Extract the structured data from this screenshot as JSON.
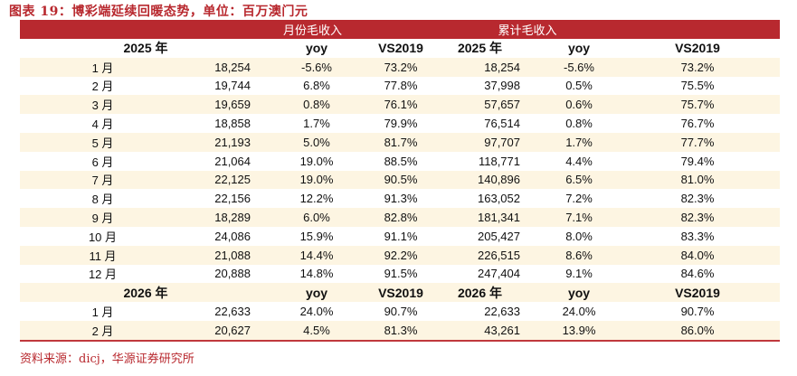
{
  "title": "图表 19：博彩端延续回暖态势，单位：百万澳门元",
  "header": {
    "monthly": "月份毛收入",
    "cumulative": "累计毛收入"
  },
  "sections": [
    {
      "subheader": [
        "2025 年",
        "yoy",
        "VS2019",
        "2025 年",
        "yoy",
        "VS2019"
      ],
      "rows": [
        [
          "1 月",
          "18,254",
          "-5.6%",
          "73.2%",
          "18,254",
          "-5.6%",
          "73.2%"
        ],
        [
          "2 月",
          "19,744",
          "6.8%",
          "77.8%",
          "37,998",
          "0.5%",
          "75.5%"
        ],
        [
          "3 月",
          "19,659",
          "0.8%",
          "76.1%",
          "57,657",
          "0.6%",
          "75.7%"
        ],
        [
          "4 月",
          "18,858",
          "1.7%",
          "79.9%",
          "76,514",
          "0.8%",
          "76.7%"
        ],
        [
          "5 月",
          "21,193",
          "5.0%",
          "81.7%",
          "97,707",
          "1.7%",
          "77.7%"
        ],
        [
          "6 月",
          "21,064",
          "19.0%",
          "88.5%",
          "118,771",
          "4.4%",
          "79.4%"
        ],
        [
          "7 月",
          "22,125",
          "19.0%",
          "90.5%",
          "140,896",
          "6.5%",
          "81.0%"
        ],
        [
          "8 月",
          "22,156",
          "12.2%",
          "91.3%",
          "163,052",
          "7.2%",
          "82.3%"
        ],
        [
          "9 月",
          "18,289",
          "6.0%",
          "82.8%",
          "181,341",
          "7.1%",
          "82.3%"
        ],
        [
          "10 月",
          "24,086",
          "15.9%",
          "91.1%",
          "205,427",
          "8.0%",
          "83.3%"
        ],
        [
          "11 月",
          "21,088",
          "14.4%",
          "92.2%",
          "226,515",
          "8.6%",
          "84.0%"
        ],
        [
          "12 月",
          "20,888",
          "14.8%",
          "91.5%",
          "247,404",
          "9.1%",
          "84.6%"
        ]
      ]
    },
    {
      "subheader": [
        "2026 年",
        "yoy",
        "VS2019",
        "2026 年",
        "yoy",
        "VS2019"
      ],
      "rows": [
        [
          "1 月",
          "22,633",
          "24.0%",
          "90.7%",
          "22,633",
          "24.0%",
          "90.7%"
        ],
        [
          "2 月",
          "20,627",
          "4.5%",
          "81.3%",
          "43,261",
          "13.9%",
          "86.0%"
        ]
      ]
    }
  ],
  "source": "资料来源：dicj，华源证券研究所"
}
